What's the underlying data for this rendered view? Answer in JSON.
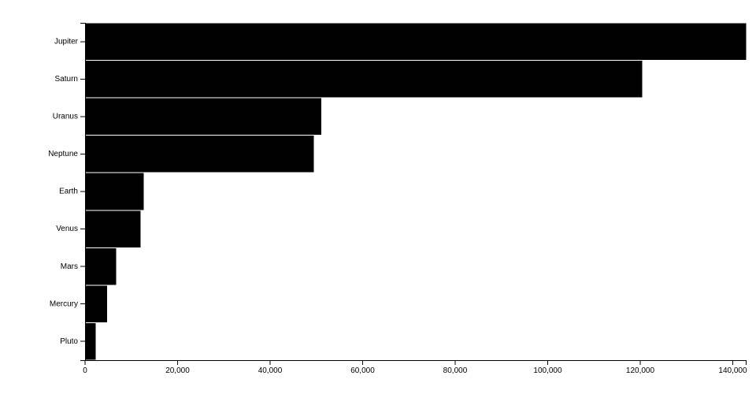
{
  "chart_data": {
    "type": "bar",
    "orientation": "horizontal",
    "categories": [
      "Jupiter",
      "Saturn",
      "Uranus",
      "Neptune",
      "Earth",
      "Venus",
      "Mars",
      "Mercury",
      "Pluto"
    ],
    "values": [
      142984,
      120536,
      51118,
      49528,
      12756,
      12104,
      6792,
      4879,
      2370
    ],
    "x_ticks": [
      "0",
      "20,000",
      "40,000",
      "60,000",
      "80,000",
      "100,000",
      "120,000",
      "140,000"
    ],
    "x_tick_values": [
      0,
      20000,
      40000,
      60000,
      80000,
      100000,
      120000,
      140000
    ],
    "xlim": [
      0,
      142984
    ],
    "bar_color": "#000000",
    "grid": false,
    "legend": "none"
  }
}
